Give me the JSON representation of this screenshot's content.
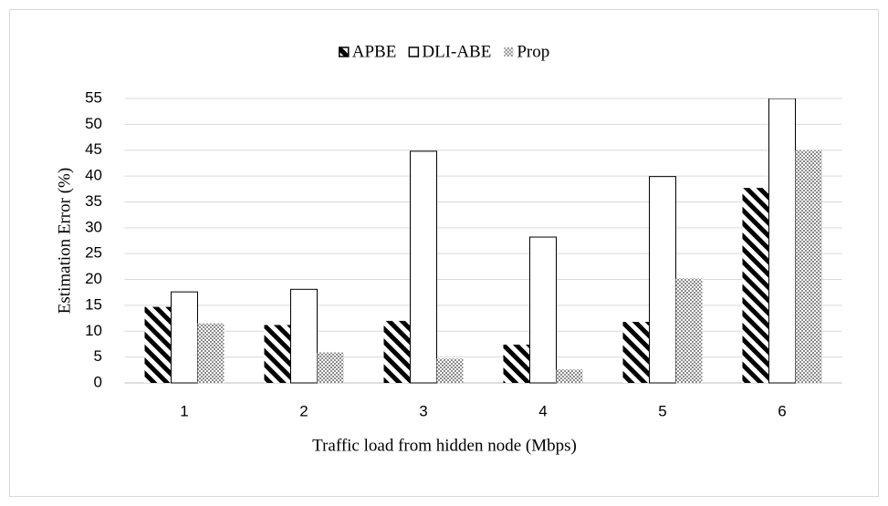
{
  "chart_data": {
    "type": "bar",
    "x_label": "Traffic load from hidden node (Mbps)",
    "y_label": "Estimation Error (%)",
    "categories": [
      "1",
      "2",
      "3",
      "4",
      "5",
      "6"
    ],
    "series": [
      {
        "name": "APBE",
        "color": "#000000",
        "pattern": "hatch",
        "values": [
          14.7,
          11.2,
          12.0,
          7.4,
          11.8,
          37.7
        ]
      },
      {
        "name": "DLI-ABE",
        "color": "#ffffff",
        "pattern": "none",
        "values": [
          17.6,
          18.1,
          44.8,
          28.2,
          39.9,
          55
        ]
      },
      {
        "name": "Prop",
        "color": "#8c8c8c",
        "pattern": "dots",
        "values": [
          11.5,
          5.9,
          4.7,
          2.6,
          20.2,
          45.0
        ]
      }
    ],
    "ylim": [
      0,
      55
    ],
    "yticks": [
      0,
      5,
      10,
      15,
      20,
      25,
      30,
      35,
      40,
      45,
      50,
      55
    ],
    "grid": true,
    "legend": "top"
  }
}
